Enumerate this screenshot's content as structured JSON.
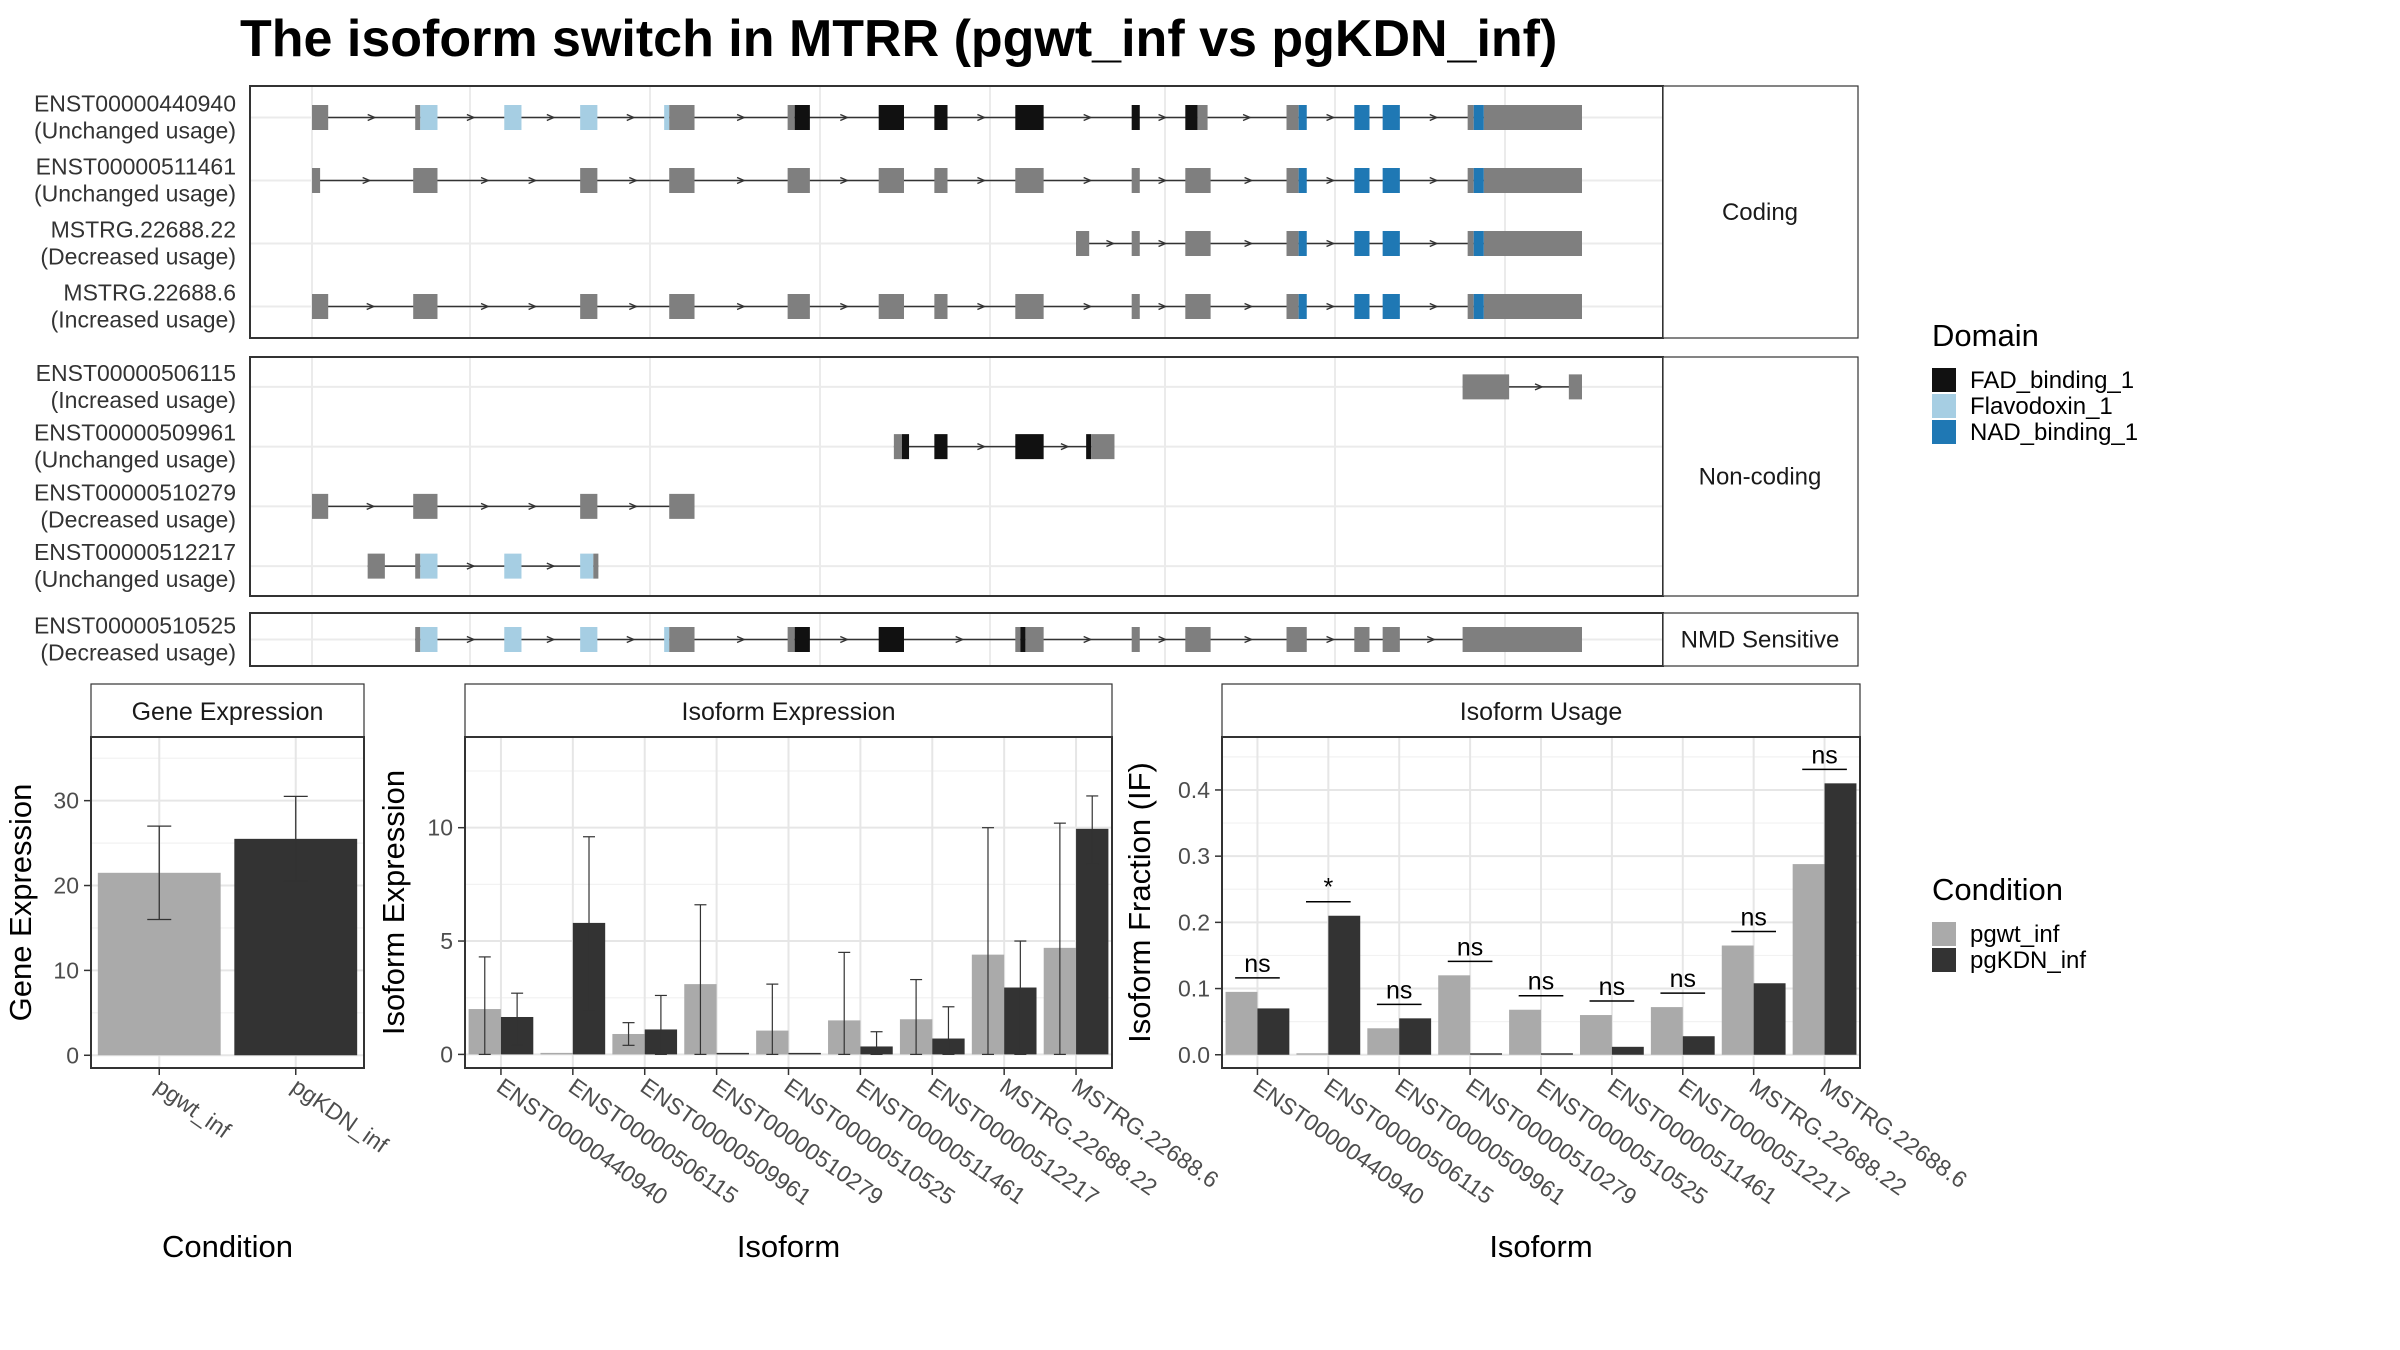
{
  "title": "The isoform switch in MTRR (pgwt_inf vs pgKDN_inf)",
  "colors": {
    "exon_plain": "#7f7f7f",
    "FAD_binding_1": "#111111",
    "Flavodoxin_1": "#a6cee3",
    "NAD_binding_1": "#1f78b4",
    "pgwt_inf": "#aaaaaa",
    "pgKDN_inf": "#333333"
  },
  "structure": {
    "domain_legend": {
      "title": "Domain",
      "items": [
        "FAD_binding_1",
        "Flavodoxin_1",
        "NAD_binding_1"
      ]
    },
    "panels": [
      {
        "label": "Coding",
        "isoforms": [
          {
            "id": "ENST00000440940",
            "usage": "(Unchanged usage)",
            "exons": [
              [
                0.0,
                0.016,
                "plain"
              ],
              [
                0.102,
                0.107,
                "plain"
              ],
              [
                0.107,
                0.124,
                "Flavodoxin_1"
              ],
              [
                0.19,
                0.207,
                "Flavodoxin_1"
              ],
              [
                0.265,
                0.282,
                "Flavodoxin_1"
              ],
              [
                0.348,
                0.353,
                "Flavodoxin_1"
              ],
              [
                0.353,
                0.378,
                "plain"
              ],
              [
                0.47,
                0.477,
                "plain"
              ],
              [
                0.477,
                0.492,
                "FAD_binding_1"
              ],
              [
                0.56,
                0.585,
                "FAD_binding_1"
              ],
              [
                0.615,
                0.628,
                "FAD_binding_1"
              ],
              [
                0.695,
                0.723,
                "FAD_binding_1"
              ],
              [
                0.81,
                0.818,
                "FAD_binding_1"
              ],
              [
                0.863,
                0.875,
                "FAD_binding_1"
              ],
              [
                0.875,
                0.885,
                "plain"
              ],
              [
                0.963,
                0.975,
                "plain"
              ],
              [
                0.975,
                0.983,
                "NAD_binding_1"
              ],
              [
                1.03,
                1.045,
                "NAD_binding_1"
              ],
              [
                1.058,
                1.075,
                "NAD_binding_1"
              ],
              [
                1.142,
                1.148,
                "plain"
              ],
              [
                1.148,
                1.158,
                "NAD_binding_1"
              ],
              [
                1.158,
                1.255,
                "plain"
              ]
            ]
          },
          {
            "id": "ENST00000511461",
            "usage": "(Unchanged usage)",
            "exons": [
              [
                0.0,
                0.008,
                "plain"
              ],
              [
                0.1,
                0.124,
                "plain"
              ],
              [
                0.265,
                0.282,
                "plain"
              ],
              [
                0.353,
                0.378,
                "plain"
              ],
              [
                0.47,
                0.492,
                "plain"
              ],
              [
                0.56,
                0.585,
                "plain"
              ],
              [
                0.615,
                0.628,
                "plain"
              ],
              [
                0.695,
                0.723,
                "plain"
              ],
              [
                0.81,
                0.818,
                "plain"
              ],
              [
                0.863,
                0.888,
                "plain"
              ],
              [
                0.963,
                0.975,
                "plain"
              ],
              [
                0.975,
                0.983,
                "NAD_binding_1"
              ],
              [
                1.03,
                1.045,
                "NAD_binding_1"
              ],
              [
                1.058,
                1.075,
                "NAD_binding_1"
              ],
              [
                1.142,
                1.148,
                "plain"
              ],
              [
                1.148,
                1.158,
                "NAD_binding_1"
              ],
              [
                1.158,
                1.255,
                "plain"
              ]
            ]
          },
          {
            "id": "MSTRG.22688.22",
            "usage": "(Decreased usage)",
            "exons": [
              [
                0.755,
                0.768,
                "plain"
              ],
              [
                0.81,
                0.818,
                "plain"
              ],
              [
                0.863,
                0.888,
                "plain"
              ],
              [
                0.963,
                0.975,
                "plain"
              ],
              [
                0.975,
                0.983,
                "NAD_binding_1"
              ],
              [
                1.03,
                1.045,
                "NAD_binding_1"
              ],
              [
                1.058,
                1.075,
                "NAD_binding_1"
              ],
              [
                1.142,
                1.148,
                "plain"
              ],
              [
                1.148,
                1.158,
                "NAD_binding_1"
              ],
              [
                1.158,
                1.255,
                "plain"
              ]
            ]
          },
          {
            "id": "MSTRG.22688.6",
            "usage": "(Increased usage)",
            "exons": [
              [
                0.0,
                0.016,
                "plain"
              ],
              [
                0.1,
                0.124,
                "plain"
              ],
              [
                0.265,
                0.282,
                "plain"
              ],
              [
                0.353,
                0.378,
                "plain"
              ],
              [
                0.47,
                0.492,
                "plain"
              ],
              [
                0.56,
                0.585,
                "plain"
              ],
              [
                0.615,
                0.628,
                "plain"
              ],
              [
                0.695,
                0.723,
                "plain"
              ],
              [
                0.81,
                0.818,
                "plain"
              ],
              [
                0.863,
                0.888,
                "plain"
              ],
              [
                0.963,
                0.975,
                "plain"
              ],
              [
                0.975,
                0.983,
                "NAD_binding_1"
              ],
              [
                1.03,
                1.045,
                "NAD_binding_1"
              ],
              [
                1.058,
                1.075,
                "NAD_binding_1"
              ],
              [
                1.142,
                1.148,
                "plain"
              ],
              [
                1.148,
                1.158,
                "NAD_binding_1"
              ],
              [
                1.158,
                1.255,
                "plain"
              ]
            ]
          }
        ]
      },
      {
        "label": "Non-coding",
        "isoforms": [
          {
            "id": "ENST00000506115",
            "usage": "(Increased usage)",
            "exons": [
              [
                1.137,
                1.183,
                "plain"
              ],
              [
                1.242,
                1.255,
                "plain"
              ]
            ]
          },
          {
            "id": "ENST00000509961",
            "usage": "(Unchanged usage)",
            "exons": [
              [
                0.575,
                0.583,
                "plain"
              ],
              [
                0.583,
                0.59,
                "FAD_binding_1"
              ],
              [
                0.615,
                0.628,
                "FAD_binding_1"
              ],
              [
                0.695,
                0.723,
                "FAD_binding_1"
              ],
              [
                0.765,
                0.77,
                "FAD_binding_1"
              ],
              [
                0.77,
                0.793,
                "plain"
              ]
            ]
          },
          {
            "id": "ENST00000510279",
            "usage": "(Decreased usage)",
            "exons": [
              [
                0.0,
                0.016,
                "plain"
              ],
              [
                0.1,
                0.124,
                "plain"
              ],
              [
                0.265,
                0.282,
                "plain"
              ],
              [
                0.353,
                0.378,
                "plain"
              ]
            ]
          },
          {
            "id": "ENST00000512217",
            "usage": "(Unchanged usage)",
            "exons": [
              [
                0.055,
                0.072,
                "plain"
              ],
              [
                0.102,
                0.107,
                "plain"
              ],
              [
                0.107,
                0.124,
                "Flavodoxin_1"
              ],
              [
                0.19,
                0.207,
                "Flavodoxin_1"
              ],
              [
                0.265,
                0.278,
                "Flavodoxin_1"
              ],
              [
                0.278,
                0.283,
                "plain"
              ]
            ]
          }
        ]
      },
      {
        "label": "NMD Sensitive",
        "isoforms": [
          {
            "id": "ENST00000510525",
            "usage": "(Decreased usage)",
            "exons": [
              [
                0.102,
                0.107,
                "plain"
              ],
              [
                0.107,
                0.124,
                "Flavodoxin_1"
              ],
              [
                0.19,
                0.207,
                "Flavodoxin_1"
              ],
              [
                0.265,
                0.282,
                "Flavodoxin_1"
              ],
              [
                0.348,
                0.353,
                "Flavodoxin_1"
              ],
              [
                0.353,
                0.378,
                "plain"
              ],
              [
                0.47,
                0.477,
                "plain"
              ],
              [
                0.477,
                0.492,
                "FAD_binding_1"
              ],
              [
                0.56,
                0.585,
                "FAD_binding_1"
              ],
              [
                0.695,
                0.7,
                "plain"
              ],
              [
                0.7,
                0.705,
                "FAD_binding_1"
              ],
              [
                0.705,
                0.723,
                "plain"
              ],
              [
                0.81,
                0.818,
                "plain"
              ],
              [
                0.863,
                0.888,
                "plain"
              ],
              [
                0.963,
                0.983,
                "plain"
              ],
              [
                1.03,
                1.045,
                "plain"
              ],
              [
                1.058,
                1.075,
                "plain"
              ],
              [
                1.137,
                1.255,
                "plain"
              ]
            ]
          }
        ]
      }
    ]
  },
  "chart_data": [
    {
      "type": "bar",
      "title": "Gene Expression",
      "xlabel": "Condition",
      "ylabel": "Gene Expression",
      "categories": [
        "pgwt_inf",
        "pgKDN_inf"
      ],
      "values": [
        21.5,
        25.5
      ],
      "errors": [
        [
          16.0,
          27.0
        ],
        [
          20.5,
          30.5
        ]
      ],
      "ylim": [
        -1.5,
        37.5
      ],
      "yticks": [
        0,
        10,
        20,
        30
      ],
      "legend": {
        "title": "Condition",
        "items": [
          "pgwt_inf",
          "pgKDN_inf"
        ],
        "position": "right"
      }
    },
    {
      "type": "bar",
      "title": "Isoform Expression",
      "xlabel": "Isoform",
      "ylabel": "Isoform Expression",
      "categories": [
        "ENST00000440940",
        "ENST00000506115",
        "ENST00000509961",
        "ENST00000510279",
        "ENST00000510525",
        "ENST00000511461",
        "ENST00000512217",
        "MSTRG.22688.22",
        "MSTRG.22688.6"
      ],
      "series": [
        {
          "name": "pgwt_inf",
          "values": [
            2.0,
            0.0,
            0.9,
            3.1,
            1.05,
            1.5,
            1.55,
            4.4,
            4.7
          ],
          "errors": [
            [
              0.0,
              4.3
            ],
            [
              0.0,
              0.0
            ],
            [
              0.4,
              1.4
            ],
            [
              0.0,
              6.6
            ],
            [
              0.0,
              3.1
            ],
            [
              0.0,
              4.5
            ],
            [
              0.0,
              3.3
            ],
            [
              0.0,
              10.0
            ],
            [
              0.0,
              10.2
            ]
          ]
        },
        {
          "name": "pgKDN_inf",
          "values": [
            1.65,
            5.8,
            1.1,
            0.0,
            0.0,
            0.35,
            0.7,
            2.95,
            9.95
          ],
          "errors": [
            [
              0.4,
              2.7
            ],
            [
              1.9,
              9.6
            ],
            [
              0.0,
              2.6
            ],
            [
              0.0,
              0.0
            ],
            [
              0.0,
              0.0
            ],
            [
              0.0,
              1.0
            ],
            [
              0.0,
              2.1
            ],
            [
              0.0,
              5.0
            ],
            [
              8.4,
              11.4
            ]
          ]
        }
      ],
      "ylim": [
        -0.6,
        14.0
      ],
      "yticks": [
        0,
        5,
        10
      ]
    },
    {
      "type": "bar",
      "title": "Isoform Usage",
      "xlabel": "Isoform",
      "ylabel": "Isoform Fraction (IF)",
      "categories": [
        "ENST00000440940",
        "ENST00000506115",
        "ENST00000509961",
        "ENST00000510279",
        "ENST00000510525",
        "ENST00000511461",
        "ENST00000512217",
        "MSTRG.22688.22",
        "MSTRG.22688.6"
      ],
      "series": [
        {
          "name": "pgwt_inf",
          "values": [
            0.095,
            0.0,
            0.04,
            0.12,
            0.068,
            0.06,
            0.072,
            0.165,
            0.288
          ]
        },
        {
          "name": "pgKDN_inf",
          "values": [
            0.07,
            0.21,
            0.055,
            0.0,
            0.0,
            0.012,
            0.028,
            0.108,
            0.41
          ]
        }
      ],
      "significance": [
        "ns",
        "*",
        "ns",
        "ns",
        "ns",
        "ns",
        "ns",
        "ns",
        "ns"
      ],
      "ylim": [
        -0.02,
        0.48
      ],
      "yticks": [
        0.0,
        0.1,
        0.2,
        0.3,
        0.4
      ],
      "ytick_labels": [
        "0.0",
        "0.1",
        "0.2",
        "0.3",
        "0.4"
      ]
    }
  ]
}
